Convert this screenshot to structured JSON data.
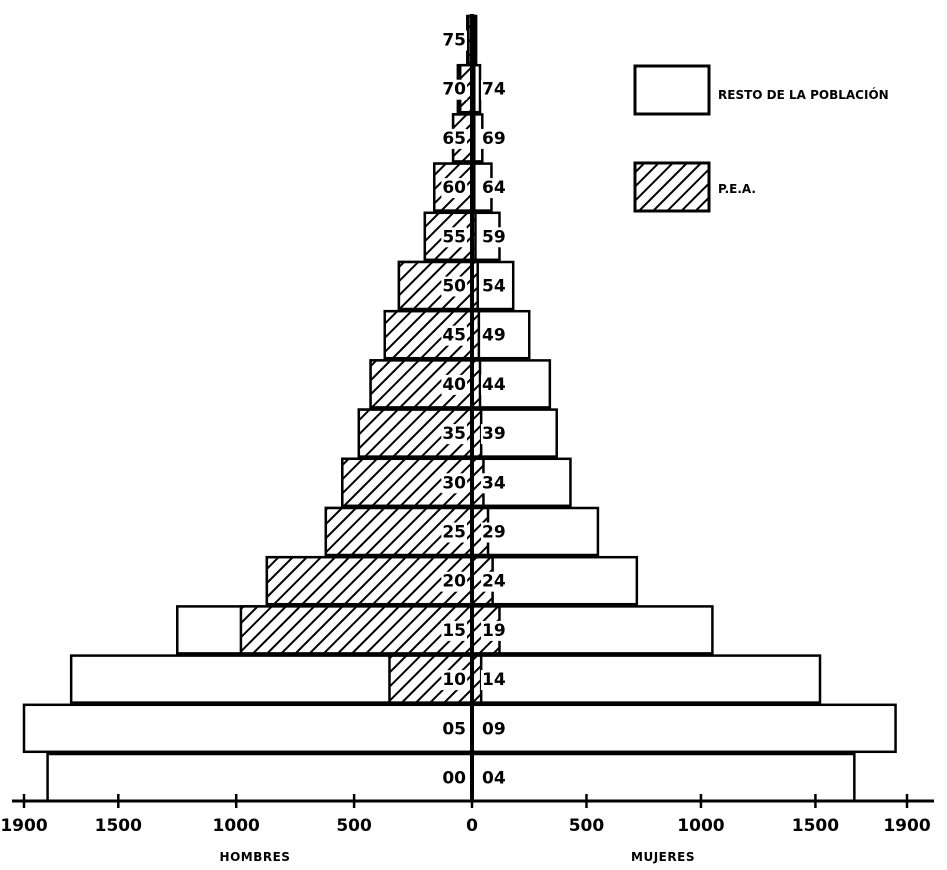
{
  "chart_data": {
    "type": "bar",
    "subtype": "population-pyramid",
    "title": "",
    "xlabel_left": "HOMBRES",
    "xlabel_right": "MUJERES",
    "x_ticks_left": [
      "1900",
      "1500",
      "1000",
      "500",
      "0"
    ],
    "x_ticks_right": [
      "500",
      "1000",
      "1500",
      "1900"
    ],
    "xlim_each_side": [
      0,
      1900
    ],
    "legend": {
      "position": "top-right",
      "entries": [
        {
          "key": "resto",
          "label": "RESTO DE LA POBLACIÓN",
          "fill": "white"
        },
        {
          "key": "pea",
          "label": "P.E.A.",
          "fill": "hatched"
        }
      ]
    },
    "age_groups": [
      {
        "left_label": "00",
        "right_label": "04",
        "men_total": 1800,
        "men_pea": 0,
        "women_total": 1670,
        "women_pea": 0
      },
      {
        "left_label": "05",
        "right_label": "09",
        "men_total": 1900,
        "men_pea": 0,
        "women_total": 1850,
        "women_pea": 0
      },
      {
        "left_label": "10",
        "right_label": "14",
        "men_total": 1700,
        "men_pea": 350,
        "women_total": 1520,
        "women_pea": 40
      },
      {
        "left_label": "15",
        "right_label": "19",
        "men_total": 1250,
        "men_pea": 980,
        "women_total": 1050,
        "women_pea": 120
      },
      {
        "left_label": "20",
        "right_label": "24",
        "men_total": 870,
        "men_pea": 870,
        "women_total": 720,
        "women_pea": 90
      },
      {
        "left_label": "25",
        "right_label": "29",
        "men_total": 620,
        "men_pea": 620,
        "women_total": 550,
        "women_pea": 70
      },
      {
        "left_label": "30",
        "right_label": "34",
        "men_total": 550,
        "men_pea": 550,
        "women_total": 430,
        "women_pea": 50
      },
      {
        "left_label": "35",
        "right_label": "39",
        "men_total": 480,
        "men_pea": 480,
        "women_total": 370,
        "women_pea": 40
      },
      {
        "left_label": "40",
        "right_label": "44",
        "men_total": 430,
        "men_pea": 430,
        "women_total": 340,
        "women_pea": 35
      },
      {
        "left_label": "45",
        "right_label": "49",
        "men_total": 370,
        "men_pea": 370,
        "women_total": 250,
        "women_pea": 30
      },
      {
        "left_label": "50",
        "right_label": "54",
        "men_total": 310,
        "men_pea": 310,
        "women_total": 180,
        "women_pea": 25
      },
      {
        "left_label": "55",
        "right_label": "59",
        "men_total": 200,
        "men_pea": 200,
        "women_total": 120,
        "women_pea": 15
      },
      {
        "left_label": "60",
        "right_label": "64",
        "men_total": 160,
        "men_pea": 160,
        "women_total": 85,
        "women_pea": 10
      },
      {
        "left_label": "65",
        "right_label": "69",
        "men_total": 80,
        "men_pea": 80,
        "women_total": 45,
        "women_pea": 10
      },
      {
        "left_label": "70",
        "right_label": "74",
        "men_total": 60,
        "men_pea": 50,
        "women_total": 35,
        "women_pea": 10
      },
      {
        "left_label": "75",
        "right_label": "",
        "men_total": 20,
        "men_pea": 15,
        "women_total": 18,
        "women_pea": 10
      }
    ]
  }
}
